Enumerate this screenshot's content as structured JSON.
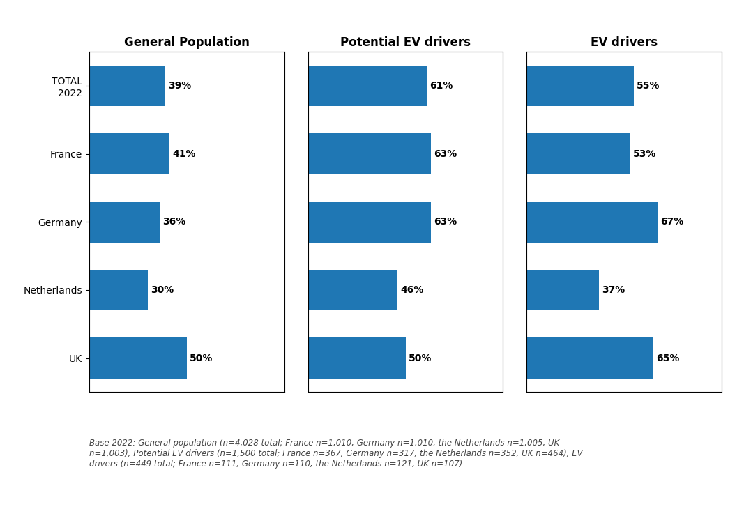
{
  "chart_data": [
    {
      "type": "bar",
      "orientation": "horizontal",
      "title": "General Population",
      "categories": [
        "TOTAL\n2022",
        "France",
        "Germany",
        "Netherlands",
        "UK"
      ],
      "values": [
        39,
        41,
        36,
        30,
        50
      ],
      "value_labels": [
        "39%",
        "41%",
        "36%",
        "30%",
        "50%"
      ],
      "data_labels": true,
      "xlim": [
        0,
        100
      ],
      "tick_labels": "y",
      "annotations": [
        "Base 2022: General population (n=4,028 total; France n=1,010, Germany n=1,010, the Netherlands n=1,005, UK\nn=1,003), Potential EV drivers (n=1,500 total; France n=367, Germany n=317, the Netherlands n=352, UK n=464), EV\ndrivers (n=449 total; France n=111, Germany n=110, the Netherlands n=121, UK n=107)."
      ]
    },
    {
      "type": "bar",
      "orientation": "horizontal",
      "title": "Potential EV drivers",
      "categories": [
        "TOTAL\n2022",
        "France",
        "Germany",
        "Netherlands",
        "UK"
      ],
      "values": [
        61,
        63,
        63,
        46,
        50
      ],
      "value_labels": [
        "61%",
        "63%",
        "63%",
        "46%",
        "50%"
      ],
      "data_labels": true,
      "xlim": [
        0,
        100
      ],
      "tick_labels": false
    },
    {
      "type": "bar",
      "orientation": "horizontal",
      "title": "EV drivers",
      "categories": [
        "TOTAL\n2022",
        "France",
        "Germany",
        "Netherlands",
        "UK"
      ],
      "values": [
        55,
        53,
        67,
        37,
        65
      ],
      "value_labels": [
        "55%",
        "53%",
        "67%",
        "37%",
        "65%"
      ],
      "data_labels": true,
      "xlim": [
        0,
        100
      ],
      "tick_labels": false
    }
  ]
}
